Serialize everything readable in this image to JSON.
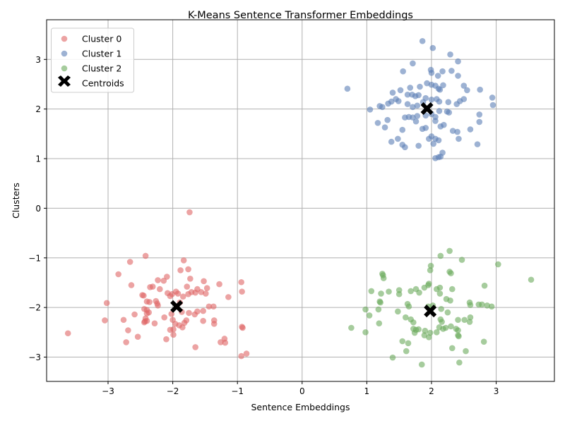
{
  "chart_data": {
    "type": "scatter",
    "title": "K-Means Sentence Transformer Embeddings",
    "xlabel": "Sentence Embeddings",
    "ylabel": "Clusters",
    "xlim": [
      -3.95,
      3.9
    ],
    "ylim": [
      -3.49,
      3.8
    ],
    "xticks": [
      -3,
      -2,
      -1,
      0,
      1,
      2,
      3
    ],
    "yticks": [
      -3,
      -2,
      -1,
      0,
      1,
      2,
      3
    ],
    "xtick_labels": [
      "−3",
      "−2",
      "−1",
      "0",
      "1",
      "2",
      "3"
    ],
    "ytick_labels": [
      "−3",
      "−2",
      "−1",
      "0",
      "1",
      "2",
      "3"
    ],
    "grid": true,
    "legend_position": "upper left",
    "series": [
      {
        "name": "Cluster 0",
        "color": "#e06666",
        "points": [
          [
            -1.74,
            -0.08
          ],
          [
            -1.83,
            -1.05
          ],
          [
            -1.88,
            -1.25
          ],
          [
            -1.76,
            -1.23
          ],
          [
            -2.42,
            -0.96
          ],
          [
            -2.66,
            -1.08
          ],
          [
            -2.84,
            -1.33
          ],
          [
            -2.64,
            -1.55
          ],
          [
            -2.09,
            -1.38
          ],
          [
            -2.14,
            -1.46
          ],
          [
            -1.73,
            -1.42
          ],
          [
            -1.78,
            -1.58
          ],
          [
            -1.52,
            -1.47
          ],
          [
            -1.47,
            -1.61
          ],
          [
            -1.28,
            -1.53
          ],
          [
            -1.14,
            -1.79
          ],
          [
            -0.94,
            -1.49
          ],
          [
            -0.93,
            -1.68
          ],
          [
            -2.35,
            -1.59
          ],
          [
            -2.31,
            -1.58
          ],
          [
            -2.2,
            -1.63
          ],
          [
            -2.23,
            -1.45
          ],
          [
            -2.47,
            -1.75
          ],
          [
            -2.45,
            -1.76
          ],
          [
            -2.4,
            -1.88
          ],
          [
            -2.36,
            -1.89
          ],
          [
            -2.26,
            -1.87
          ],
          [
            -2.23,
            -1.96
          ],
          [
            -2.24,
            -1.92
          ],
          [
            -2.4,
            -2.05
          ],
          [
            -2.44,
            -2.03
          ],
          [
            -2.37,
            -2.1
          ],
          [
            -2.4,
            -2.12
          ],
          [
            -2.42,
            -2.22
          ],
          [
            -2.4,
            -2.27
          ],
          [
            -2.44,
            -2.3
          ],
          [
            -2.28,
            -2.32
          ],
          [
            -2.08,
            -1.71
          ],
          [
            -2.04,
            -1.77
          ],
          [
            -2.01,
            -1.73
          ],
          [
            -1.95,
            -1.68
          ],
          [
            -1.92,
            -1.72
          ],
          [
            -1.84,
            -1.78
          ],
          [
            -1.76,
            -1.73
          ],
          [
            -1.71,
            -1.69
          ],
          [
            -1.65,
            -1.7
          ],
          [
            -1.62,
            -1.63
          ],
          [
            -1.56,
            -1.69
          ],
          [
            -1.49,
            -1.72
          ],
          [
            -1.89,
            -1.9
          ],
          [
            -1.86,
            -2.09
          ],
          [
            -2.13,
            -2.2
          ],
          [
            -2.02,
            -2.13
          ],
          [
            -2.0,
            -2.25
          ],
          [
            -1.96,
            -2.33
          ],
          [
            -1.9,
            -2.36
          ],
          [
            -1.82,
            -2.31
          ],
          [
            -1.79,
            -2.26
          ],
          [
            -1.85,
            -2.4
          ],
          [
            -1.75,
            -2.11
          ],
          [
            -1.66,
            -2.14
          ],
          [
            -1.62,
            -2.08
          ],
          [
            -1.53,
            -2.07
          ],
          [
            -1.53,
            -2.27
          ],
          [
            -1.44,
            -1.98
          ],
          [
            -1.37,
            -1.98
          ],
          [
            -1.36,
            -2.26
          ],
          [
            -1.36,
            -2.33
          ],
          [
            -1.26,
            -2.7
          ],
          [
            -1.19,
            -2.71
          ],
          [
            -1.2,
            -2.63
          ],
          [
            -1.65,
            -2.8
          ],
          [
            -1.99,
            -2.44
          ],
          [
            -2.04,
            -2.45
          ],
          [
            -1.99,
            -2.55
          ],
          [
            -2.1,
            -2.64
          ],
          [
            -2.43,
            -2.28
          ],
          [
            -2.54,
            -2.59
          ],
          [
            -2.72,
            -2.7
          ],
          [
            -2.69,
            -2.46
          ],
          [
            -2.76,
            -2.25
          ],
          [
            -2.59,
            -2.14
          ],
          [
            -3.05,
            -2.26
          ],
          [
            -3.02,
            -1.91
          ],
          [
            -3.62,
            -2.52
          ],
          [
            -0.93,
            -2.39
          ],
          [
            -0.92,
            -2.41
          ],
          [
            -0.86,
            -2.93
          ],
          [
            -0.94,
            -2.98
          ]
        ]
      },
      {
        "name": "Cluster 1",
        "color": "#5b7fb5",
        "points": [
          [
            1.86,
            3.37
          ],
          [
            2.02,
            3.23
          ],
          [
            2.29,
            3.1
          ],
          [
            2.41,
            2.96
          ],
          [
            1.71,
            2.92
          ],
          [
            1.56,
            2.76
          ],
          [
            1.99,
            2.79
          ],
          [
            2.0,
            2.73
          ],
          [
            2.17,
            2.76
          ],
          [
            2.31,
            2.77
          ],
          [
            2.1,
            2.67
          ],
          [
            2.41,
            2.67
          ],
          [
            2.5,
            2.47
          ],
          [
            2.55,
            2.38
          ],
          [
            2.75,
            2.39
          ],
          [
            2.94,
            2.23
          ],
          [
            2.95,
            2.08
          ],
          [
            0.7,
            2.41
          ],
          [
            1.4,
            2.33
          ],
          [
            1.52,
            2.38
          ],
          [
            1.45,
            2.2
          ],
          [
            1.38,
            2.15
          ],
          [
            1.49,
            2.16
          ],
          [
            1.63,
            2.29
          ],
          [
            1.7,
            2.29
          ],
          [
            1.8,
            2.28
          ],
          [
            1.75,
            2.26
          ],
          [
            1.67,
            2.43
          ],
          [
            1.82,
            2.45
          ],
          [
            1.93,
            2.52
          ],
          [
            2.0,
            2.49
          ],
          [
            2.06,
            2.47
          ],
          [
            2.11,
            2.41
          ],
          [
            2.18,
            2.48
          ],
          [
            2.13,
            2.39
          ],
          [
            1.05,
            1.99
          ],
          [
            1.2,
            2.06
          ],
          [
            1.24,
            2.04
          ],
          [
            1.33,
            2.11
          ],
          [
            1.63,
            2.1
          ],
          [
            1.71,
            2.04
          ],
          [
            1.78,
            2.07
          ],
          [
            1.87,
            2.14
          ],
          [
            1.91,
            2.22
          ],
          [
            2.0,
            2.19
          ],
          [
            2.08,
            2.2
          ],
          [
            2.12,
            2.15
          ],
          [
            2.26,
            2.14
          ],
          [
            2.39,
            2.1
          ],
          [
            2.44,
            2.16
          ],
          [
            2.5,
            2.2
          ],
          [
            1.59,
            1.83
          ],
          [
            1.65,
            1.84
          ],
          [
            1.71,
            1.83
          ],
          [
            1.78,
            1.86
          ],
          [
            1.91,
            1.87
          ],
          [
            2.0,
            1.9
          ],
          [
            2.06,
            1.84
          ],
          [
            2.12,
            1.96
          ],
          [
            2.27,
            1.93
          ],
          [
            2.24,
            1.95
          ],
          [
            2.6,
            1.59
          ],
          [
            2.74,
            1.74
          ],
          [
            2.74,
            1.89
          ],
          [
            1.17,
            1.72
          ],
          [
            1.32,
            1.78
          ],
          [
            1.28,
            1.63
          ],
          [
            1.55,
            1.58
          ],
          [
            1.76,
            1.75
          ],
          [
            1.86,
            1.6
          ],
          [
            1.91,
            1.62
          ],
          [
            2.06,
            1.76
          ],
          [
            2.14,
            1.65
          ],
          [
            2.19,
            1.68
          ],
          [
            2.33,
            1.56
          ],
          [
            2.4,
            1.54
          ],
          [
            2.42,
            1.4
          ],
          [
            2.71,
            1.29
          ],
          [
            1.38,
            1.34
          ],
          [
            1.48,
            1.4
          ],
          [
            1.55,
            1.28
          ],
          [
            1.59,
            1.23
          ],
          [
            1.8,
            1.26
          ],
          [
            1.96,
            1.4
          ],
          [
            2.0,
            1.45
          ],
          [
            2.06,
            1.4
          ],
          [
            2.03,
            1.3
          ],
          [
            2.11,
            1.37
          ],
          [
            2.17,
            1.12
          ],
          [
            2.06,
            1.01
          ],
          [
            2.11,
            1.03
          ],
          [
            2.14,
            1.04
          ]
        ]
      },
      {
        "name": "Cluster 2",
        "color": "#6aaa5c",
        "points": [
          [
            2.28,
            -0.86
          ],
          [
            2.14,
            -0.96
          ],
          [
            2.47,
            -1.04
          ],
          [
            3.03,
            -1.13
          ],
          [
            1.99,
            -1.16
          ],
          [
            2.28,
            -1.28
          ],
          [
            2.3,
            -1.31
          ],
          [
            1.98,
            -1.25
          ],
          [
            1.24,
            -1.32
          ],
          [
            1.25,
            -1.35
          ],
          [
            1.26,
            -1.41
          ],
          [
            2.82,
            -1.56
          ],
          [
            3.54,
            -1.44
          ],
          [
            1.07,
            -1.67
          ],
          [
            1.22,
            -1.72
          ],
          [
            1.34,
            -1.68
          ],
          [
            1.5,
            -1.65
          ],
          [
            1.5,
            -1.73
          ],
          [
            1.68,
            -1.67
          ],
          [
            1.76,
            -1.63
          ],
          [
            1.81,
            -1.7
          ],
          [
            1.95,
            -1.55
          ],
          [
            1.96,
            -1.52
          ],
          [
            1.89,
            -1.6
          ],
          [
            2.08,
            -1.63
          ],
          [
            2.13,
            -1.6
          ],
          [
            2.13,
            -1.72
          ],
          [
            2.23,
            -1.83
          ],
          [
            2.29,
            -1.86
          ],
          [
            2.32,
            -1.63
          ],
          [
            1.2,
            -1.88
          ],
          [
            1.21,
            -1.9
          ],
          [
            1.18,
            -2.04
          ],
          [
            0.98,
            -2.04
          ],
          [
            1.63,
            -1.93
          ],
          [
            1.65,
            -1.98
          ],
          [
            1.95,
            -1.98
          ],
          [
            2.02,
            -1.96
          ],
          [
            2.15,
            -2.03
          ],
          [
            2.25,
            -2.1
          ],
          [
            2.59,
            -1.9
          ],
          [
            2.6,
            -1.95
          ],
          [
            2.73,
            -1.94
          ],
          [
            2.78,
            -1.94
          ],
          [
            2.93,
            -1.98
          ],
          [
            2.86,
            -1.96
          ],
          [
            1.04,
            -2.16
          ],
          [
            1.48,
            -2.08
          ],
          [
            1.19,
            -2.32
          ],
          [
            1.6,
            -2.2
          ],
          [
            1.68,
            -2.24
          ],
          [
            1.72,
            -2.3
          ],
          [
            1.72,
            -2.43
          ],
          [
            1.76,
            -2.45
          ],
          [
            1.74,
            -2.51
          ],
          [
            1.8,
            -2.44
          ],
          [
            1.9,
            -2.47
          ],
          [
            1.98,
            -2.51
          ],
          [
            2.08,
            -2.5
          ],
          [
            2.12,
            -2.4
          ],
          [
            2.14,
            -2.24
          ],
          [
            2.16,
            -2.29
          ],
          [
            2.18,
            -2.43
          ],
          [
            2.22,
            -2.41
          ],
          [
            2.3,
            -2.38
          ],
          [
            2.41,
            -2.46
          ],
          [
            2.41,
            -2.25
          ],
          [
            2.51,
            -2.25
          ],
          [
            2.59,
            -2.29
          ],
          [
            2.6,
            -2.2
          ],
          [
            0.76,
            -2.41
          ],
          [
            0.98,
            -2.5
          ],
          [
            1.55,
            -2.68
          ],
          [
            1.64,
            -2.72
          ],
          [
            1.61,
            -2.88
          ],
          [
            1.89,
            -2.56
          ],
          [
            1.96,
            -2.6
          ],
          [
            2.41,
            -2.56
          ],
          [
            2.42,
            -2.58
          ],
          [
            2.38,
            -2.43
          ],
          [
            2.81,
            -2.69
          ],
          [
            2.32,
            -2.82
          ],
          [
            2.53,
            -2.88
          ],
          [
            1.4,
            -3.01
          ],
          [
            1.85,
            -3.15
          ],
          [
            2.43,
            -3.11
          ]
        ]
      },
      {
        "name": "Centroids",
        "color": "#000000",
        "marker": "X",
        "points": [
          [
            -1.94,
            -1.98
          ],
          [
            1.93,
            2.01
          ],
          [
            1.98,
            -2.07
          ]
        ]
      }
    ]
  }
}
